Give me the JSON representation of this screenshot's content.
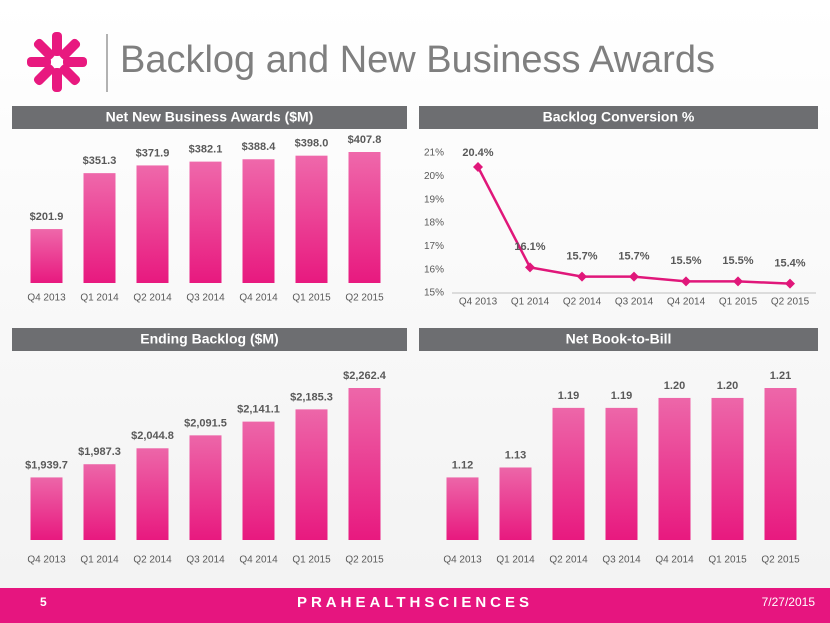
{
  "slide": {
    "title": "Backlog and New Business Awards",
    "page": "5",
    "brand": "PRAHEALTHSCIENCES",
    "date": "7/27/2015"
  },
  "chart_data": [
    {
      "type": "bar",
      "title": "Net New Business Awards ($M)",
      "color": "#e8197f",
      "categories": [
        "Q4 2013",
        "Q1 2014",
        "Q2 2014",
        "Q3 2014",
        "Q4 2014",
        "Q1 2015",
        "Q2 2015"
      ],
      "values": [
        201.9,
        351.3,
        371.9,
        382.1,
        388.4,
        398.0,
        407.8
      ],
      "value_labels": [
        "$201.9",
        "$351.3",
        "$371.9",
        "$382.1",
        "$388.4",
        "$398.0",
        "$407.8"
      ]
    },
    {
      "type": "line",
      "title": "Backlog Conversion %",
      "color": "#e0177a",
      "grid": false,
      "categories": [
        "Q4 2013",
        "Q1 2014",
        "Q2 2014",
        "Q3 2014",
        "Q4 2014",
        "Q1 2015",
        "Q2 2015"
      ],
      "values": [
        20.4,
        16.1,
        15.7,
        15.7,
        15.5,
        15.5,
        15.4
      ],
      "value_labels": [
        "20.4%",
        "16.1%",
        "15.7%",
        "15.7%",
        "15.5%",
        "15.5%",
        "15.4%"
      ],
      "ylim": [
        15,
        21
      ],
      "yticks": [
        {
          "value": 15,
          "label": "15%"
        },
        {
          "value": 16,
          "label": "16%"
        },
        {
          "value": 17,
          "label": "17%"
        },
        {
          "value": 18,
          "label": "18%"
        },
        {
          "value": 19,
          "label": "19%"
        },
        {
          "value": 20,
          "label": "20%"
        },
        {
          "value": 21,
          "label": "21%"
        }
      ]
    },
    {
      "type": "bar",
      "title": "Ending Backlog ($M)",
      "color": "#e8197f",
      "categories": [
        "Q4 2013",
        "Q1 2014",
        "Q2 2014",
        "Q3 2014",
        "Q4 2014",
        "Q1 2015",
        "Q2 2015"
      ],
      "values": [
        1939.7,
        1987.3,
        2044.8,
        2091.5,
        2141.1,
        2185.3,
        2262.4
      ],
      "value_labels": [
        "$1,939.7",
        "$1,987.3",
        "$2,044.8",
        "$2,091.5",
        "$2,141.1",
        "$2,185.3",
        "$2,262.4"
      ]
    },
    {
      "type": "bar",
      "title": "Net Book-to-Bill",
      "color": "#e8197f",
      "categories": [
        "Q4 2013",
        "Q1 2014",
        "Q2 2014",
        "Q3 2014",
        "Q4 2014",
        "Q1 2015",
        "Q2 2015"
      ],
      "values": [
        1.12,
        1.13,
        1.19,
        1.19,
        1.2,
        1.2,
        1.21
      ],
      "value_labels": [
        "1.12",
        "1.13",
        "1.19",
        "1.19",
        "1.20",
        "1.20",
        "1.21"
      ]
    }
  ]
}
